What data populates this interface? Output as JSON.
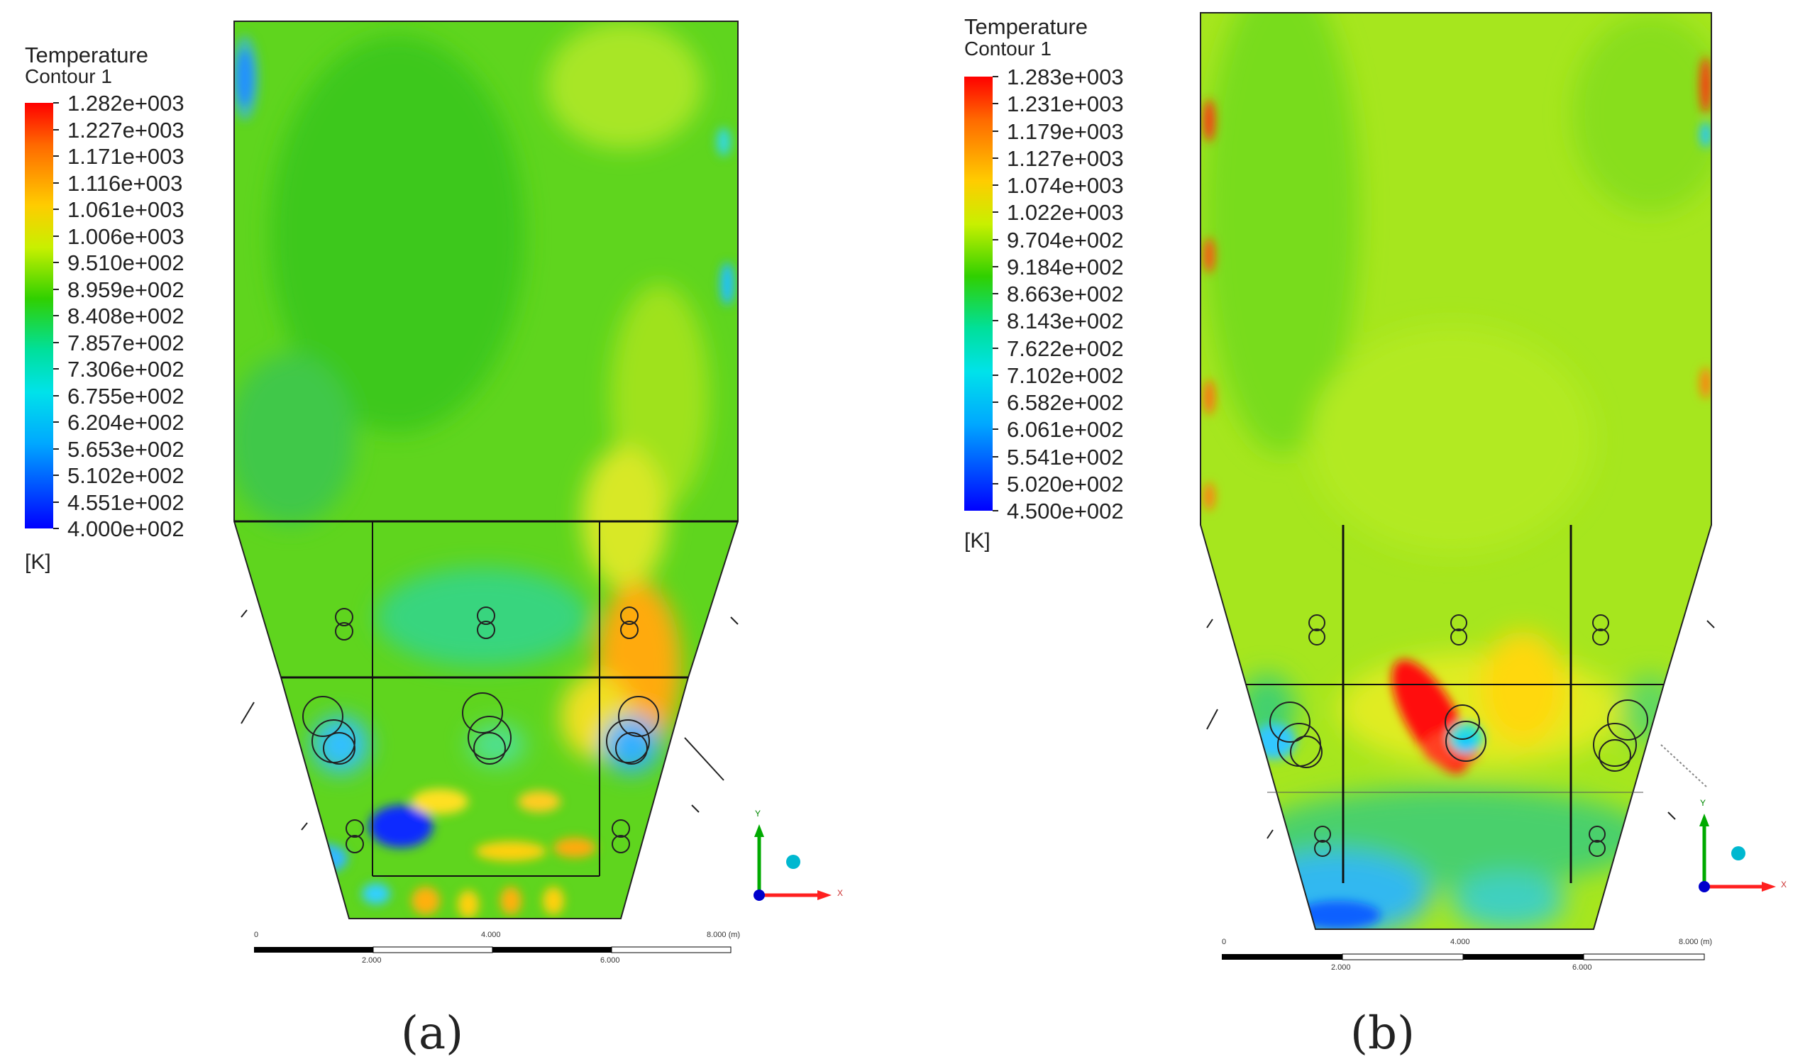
{
  "panels": [
    {
      "id": "a",
      "legend": {
        "title": "Temperature",
        "subtitle": "Contour 1",
        "unit": "[K]",
        "labels": [
          "1.282e+003",
          "1.227e+003",
          "1.171e+003",
          "1.116e+003",
          "1.061e+003",
          "1.006e+003",
          "9.510e+002",
          "8.959e+002",
          "8.408e+002",
          "7.857e+002",
          "7.306e+002",
          "6.755e+002",
          "6.204e+002",
          "5.653e+002",
          "5.102e+002",
          "4.551e+002",
          "4.000e+002"
        ]
      },
      "scalebar": {
        "ticks": [
          "0",
          "4.000",
          "8.000 (m)"
        ],
        "mid_ticks": [
          "2.000",
          "6.000"
        ]
      },
      "axes": {
        "y": "Y",
        "x": "X"
      },
      "caption": "(a)"
    },
    {
      "id": "b",
      "legend": {
        "title": "Temperature",
        "subtitle": "Contour 1",
        "unit": "[K]",
        "labels": [
          "1.283e+003",
          "1.231e+003",
          "1.179e+003",
          "1.127e+003",
          "1.074e+003",
          "1.022e+003",
          "9.704e+002",
          "9.184e+002",
          "8.663e+002",
          "8.143e+002",
          "7.622e+002",
          "7.102e+002",
          "6.582e+002",
          "6.061e+002",
          "5.541e+002",
          "5.020e+002",
          "4.500e+002"
        ]
      },
      "scalebar": {
        "ticks": [
          "0",
          "4.000",
          "8.000 (m)"
        ],
        "mid_ticks": [
          "2.000",
          "6.000"
        ]
      },
      "axes": {
        "y": "Y",
        "x": "X"
      },
      "caption": "(b)"
    }
  ],
  "colors": {
    "hot": "#ff0000",
    "warm": "#ffcc00",
    "mid": "#30d000",
    "cool": "#00e2ea",
    "cold": "#0000ff"
  }
}
